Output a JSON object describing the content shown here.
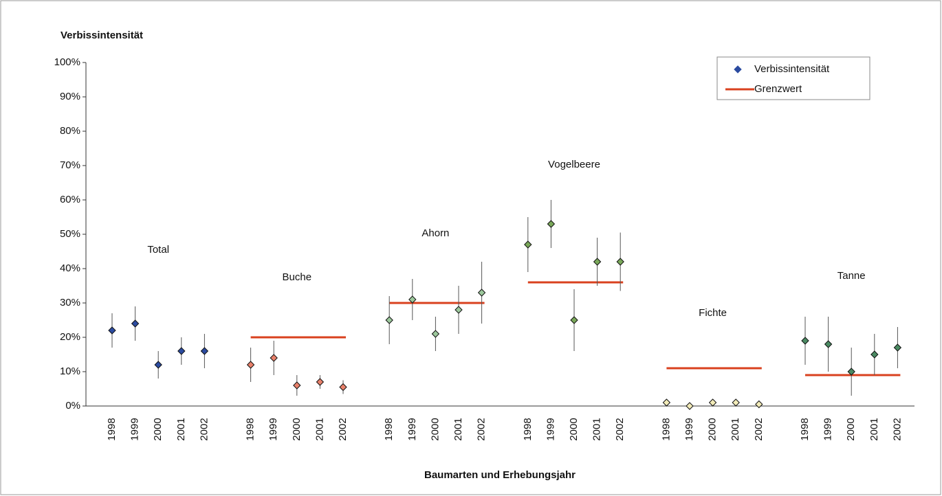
{
  "chart_data": {
    "type": "errorbar",
    "y_label": "Verbissintensität",
    "x_label": "Baumarten und Erhebungsjahr",
    "ylim": [
      0,
      100
    ],
    "yticks": [
      {
        "value": 0,
        "label": "0%"
      },
      {
        "value": 10,
        "label": "10%"
      },
      {
        "value": 20,
        "label": "20%"
      },
      {
        "value": 30,
        "label": "30%"
      },
      {
        "value": 40,
        "label": "40%"
      },
      {
        "value": 50,
        "label": "50%"
      },
      {
        "value": 60,
        "label": "60%"
      },
      {
        "value": 70,
        "label": "70%"
      },
      {
        "value": 80,
        "label": "80%"
      },
      {
        "value": 90,
        "label": "90%"
      },
      {
        "value": 100,
        "label": "100%"
      }
    ],
    "legend_position": "upper right",
    "series": [
      {
        "name": "Verbissintensität",
        "color": "#2b4ba0"
      },
      {
        "name": "Grenzwert",
        "color": "#d9401e"
      }
    ],
    "groups": [
      {
        "name": "Total",
        "color": "#2b4ba0",
        "categories": [
          "1998",
          "1999",
          "2000",
          "2001",
          "2002"
        ],
        "values": [
          22,
          24,
          12,
          16,
          16
        ],
        "errors": [
          5,
          5,
          4,
          4,
          5
        ],
        "limit": null
      },
      {
        "name": "Buche",
        "color": "#e8806a",
        "categories": [
          "1998",
          "1999",
          "2000",
          "2001",
          "2002"
        ],
        "values": [
          12,
          14,
          6,
          7,
          5.5
        ],
        "errors": [
          5,
          5,
          3,
          2,
          2
        ],
        "limit": 20
      },
      {
        "name": "Ahorn",
        "color": "#9cc89c",
        "categories": [
          "1998",
          "1999",
          "2000",
          "2001",
          "2002"
        ],
        "values": [
          25,
          31,
          21,
          28,
          33
        ],
        "errors": [
          7,
          6,
          5,
          7,
          9
        ],
        "limit": 30
      },
      {
        "name": "Vogelbeere",
        "color": "#7aa85a",
        "categories": [
          "1998",
          "1999",
          "2000",
          "2001",
          "2002"
        ],
        "values": [
          47,
          53,
          25,
          42,
          42
        ],
        "errors": [
          8,
          7,
          9,
          7,
          8.5
        ],
        "limit": 36
      },
      {
        "name": "Fichte",
        "color": "#f2ebb8",
        "categories": [
          "1998",
          "1999",
          "2000",
          "2001",
          "2002"
        ],
        "values": [
          1,
          0,
          1,
          1,
          0.5
        ],
        "errors": [
          0.5,
          0.3,
          0.5,
          0.5,
          0.4
        ],
        "limit": 11
      },
      {
        "name": "Tanne",
        "color": "#4a8a62",
        "categories": [
          "1998",
          "1999",
          "2000",
          "2001",
          "2002"
        ],
        "values": [
          19,
          18,
          10,
          15,
          17
        ],
        "errors": [
          7,
          8,
          7,
          6,
          6
        ],
        "limit": 9
      }
    ]
  }
}
